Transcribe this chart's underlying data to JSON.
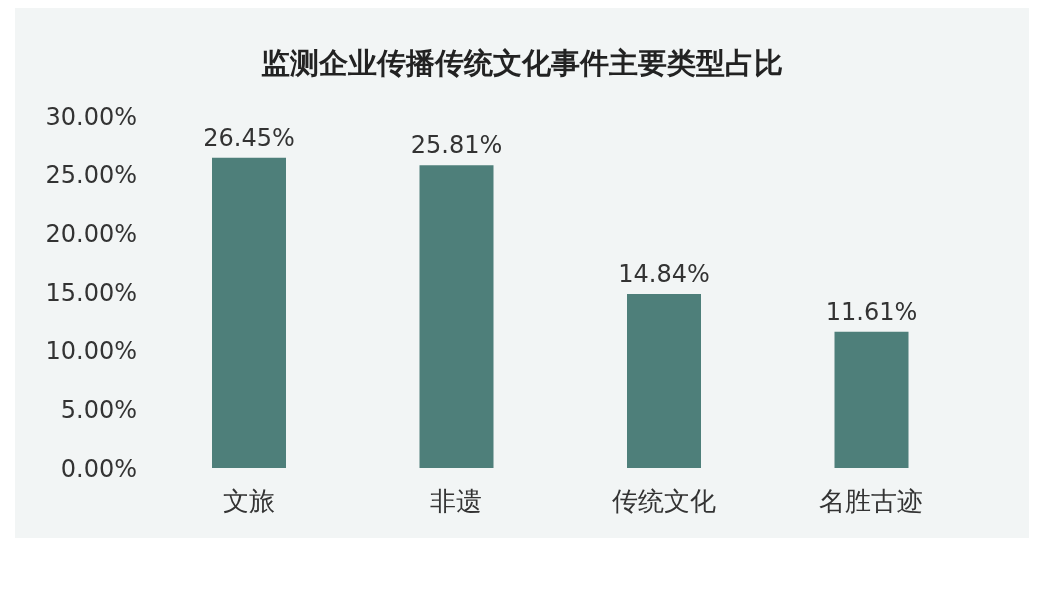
{
  "chart_data": {
    "type": "bar",
    "title": "监测企业传播传统文化事件主要类型占比",
    "categories": [
      "文旅",
      "非遗",
      "传统文化",
      "名胜古迹"
    ],
    "values": [
      26.45,
      25.81,
      14.84,
      11.61
    ],
    "value_labels": [
      "26.45%",
      "25.81%",
      "14.84%",
      "11.61%"
    ],
    "color": "#4e7f7a",
    "ylim": [
      0,
      30
    ],
    "yticks": [
      {
        "value": 0,
        "label": "0.00%"
      },
      {
        "value": 5,
        "label": "5.00%"
      },
      {
        "value": 10,
        "label": "10.00%"
      },
      {
        "value": 15,
        "label": "15.00%"
      },
      {
        "value": 20,
        "label": "20.00%"
      },
      {
        "value": 25,
        "label": "25.00%"
      },
      {
        "value": 30,
        "label": "30.00%"
      }
    ],
    "grid": false
  }
}
